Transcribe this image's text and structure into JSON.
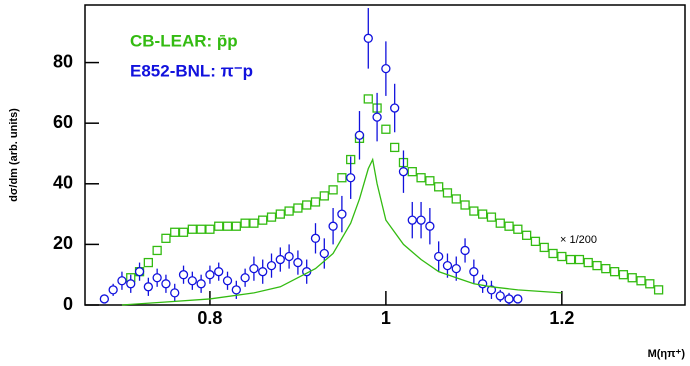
{
  "chart_data": {
    "type": "scatter",
    "y_label": "dσ/dm (arb. units)",
    "x_label": "M(ηπ⁺)",
    "xlim": [
      0.658,
      1.34
    ],
    "ylim": [
      0,
      99
    ],
    "xticks": [
      0.8,
      1,
      1.2
    ],
    "yticks": [
      0,
      20,
      40,
      60,
      80
    ],
    "legend": "upper left",
    "annotation": "× 1/200",
    "series": [
      {
        "name": "CB-LEAR: p̄p",
        "color": "#33bb11",
        "marker": "square",
        "x": [
          0.71,
          0.72,
          0.73,
          0.74,
          0.75,
          0.76,
          0.77,
          0.78,
          0.79,
          0.8,
          0.81,
          0.82,
          0.83,
          0.84,
          0.85,
          0.86,
          0.87,
          0.88,
          0.89,
          0.9,
          0.91,
          0.92,
          0.93,
          0.94,
          0.95,
          0.96,
          0.97,
          0.98,
          0.99,
          1,
          1.01,
          1.02,
          1.03,
          1.04,
          1.05,
          1.06,
          1.07,
          1.08,
          1.09,
          1.1,
          1.11,
          1.12,
          1.13,
          1.14,
          1.15,
          1.16,
          1.17,
          1.18,
          1.19,
          1.2,
          1.21,
          1.22,
          1.23,
          1.24,
          1.25,
          1.26,
          1.27,
          1.28,
          1.29,
          1.3,
          1.31
        ],
        "values": [
          9,
          11,
          14,
          18,
          22,
          24,
          24,
          25,
          25,
          25,
          26,
          26,
          26,
          27,
          27,
          28,
          29,
          30,
          31,
          32,
          33,
          34,
          36,
          38,
          42,
          48,
          55,
          68,
          65,
          58,
          52,
          47,
          44,
          42,
          41,
          39,
          37,
          35,
          33,
          31,
          30,
          29,
          27,
          26,
          25,
          23,
          21,
          19,
          17,
          16,
          15,
          15,
          14,
          13,
          12,
          11,
          10,
          9,
          8,
          7,
          5
        ]
      },
      {
        "name": "E852-BNL: π⁻p",
        "color": "#1111dd",
        "marker": "circle",
        "x": [
          0.68,
          0.69,
          0.7,
          0.71,
          0.72,
          0.73,
          0.74,
          0.75,
          0.76,
          0.77,
          0.78,
          0.79,
          0.8,
          0.81,
          0.82,
          0.83,
          0.84,
          0.85,
          0.86,
          0.87,
          0.88,
          0.89,
          0.9,
          0.91,
          0.92,
          0.93,
          0.94,
          0.95,
          0.96,
          0.97,
          0.98,
          0.99,
          1,
          1.01,
          1.02,
          1.03,
          1.04,
          1.05,
          1.06,
          1.07,
          1.08,
          1.09,
          1.1,
          1.11,
          1.12,
          1.13,
          1.14,
          1.15
        ],
        "values": [
          2,
          5,
          8,
          7,
          11,
          6,
          9,
          7,
          4,
          10,
          8,
          7,
          10,
          11,
          8,
          5,
          9,
          12,
          11,
          13,
          15,
          16,
          14,
          11,
          22,
          17,
          26,
          30,
          42,
          56,
          88,
          62,
          78,
          65,
          44,
          28,
          28,
          26,
          16,
          13,
          12,
          18,
          11,
          7,
          5,
          3,
          2,
          2
        ],
        "errors": [
          1,
          2,
          3,
          3,
          3,
          3,
          3,
          3,
          3,
          3,
          3,
          3,
          3,
          3,
          3,
          3,
          3,
          4,
          4,
          4,
          4,
          4,
          4,
          4,
          5,
          5,
          6,
          6,
          7,
          8,
          10,
          8,
          9,
          8,
          7,
          6,
          6,
          6,
          5,
          4,
          4,
          4,
          4,
          3,
          3,
          2,
          2,
          1
        ]
      },
      {
        "color": "#33bb11",
        "marker": "line",
        "x": [
          0.7,
          0.75,
          0.8,
          0.85,
          0.88,
          0.9,
          0.92,
          0.94,
          0.96,
          0.97,
          0.98,
          0.985,
          0.99,
          1,
          1.02,
          1.04,
          1.06,
          1.08,
          1.1,
          1.12,
          1.15,
          1.2
        ],
        "values": [
          0,
          1,
          2,
          4,
          6,
          9,
          12,
          17,
          27,
          35,
          45,
          48,
          40,
          28,
          20,
          15,
          11,
          9,
          7,
          6,
          5,
          4
        ]
      }
    ]
  }
}
